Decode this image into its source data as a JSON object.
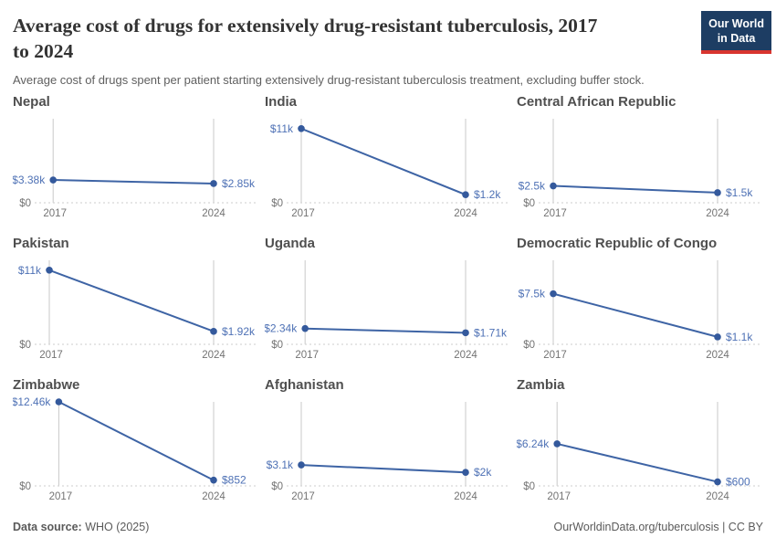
{
  "header": {
    "title_line1": "Average cost of drugs for extensively drug-resistant tuberculosis, 2017",
    "title_line2": "to 2024",
    "subtitle": "Average cost of drugs spent per patient starting extensively drug-resistant tuberculosis treatment, excluding buffer stock.",
    "logo_line1": "Our World",
    "logo_line2": "in Data",
    "logo_colors": {
      "background": "#1d3d63",
      "bar": "#d8352f",
      "text": "#ffffff"
    }
  },
  "chart_data": {
    "type": "line",
    "title": "Average cost of drugs for extensively drug-resistant tuberculosis, 2017 to 2024",
    "subtitle": "Average cost of drugs spent per patient starting extensively drug-resistant tuberculosis treatment, excluding buffer stock.",
    "x": [
      2017,
      2024
    ],
    "x_tick_labels": [
      "2017",
      "2024"
    ],
    "ylim": [
      0,
      12460
    ],
    "y_zero_label": "$0",
    "grid": "vertical-year-gridlines, dotted zero baseline, no legend",
    "facets": [
      {
        "country": "Nepal",
        "values": [
          3380,
          2850
        ],
        "labels": [
          "$3.38k",
          "$2.85k"
        ]
      },
      {
        "country": "India",
        "values": [
          11000,
          1200
        ],
        "labels": [
          "$11k",
          "$1.2k"
        ]
      },
      {
        "country": "Central African Republic",
        "values": [
          2500,
          1500
        ],
        "labels": [
          "$2.5k",
          "$1.5k"
        ]
      },
      {
        "country": "Pakistan",
        "values": [
          11000,
          1920
        ],
        "labels": [
          "$11k",
          "$1.92k"
        ]
      },
      {
        "country": "Uganda",
        "values": [
          2340,
          1710
        ],
        "labels": [
          "$2.34k",
          "$1.71k"
        ]
      },
      {
        "country": "Democratic Republic of Congo",
        "values": [
          7500,
          1100
        ],
        "labels": [
          "$7.5k",
          "$1.1k"
        ]
      },
      {
        "country": "Zimbabwe",
        "values": [
          12460,
          852
        ],
        "labels": [
          "$12.46k",
          "$852"
        ]
      },
      {
        "country": "Afghanistan",
        "values": [
          3100,
          2000
        ],
        "labels": [
          "$3.1k",
          "$2k"
        ]
      },
      {
        "country": "Zambia",
        "values": [
          6240,
          600
        ],
        "labels": [
          "$6.24k",
          "$600"
        ]
      }
    ],
    "colors": {
      "line": "#3e64a5",
      "point": "#34599c",
      "value_label": "#4e71b5",
      "axis_text": "#737373",
      "gridline": "#c9c9c9",
      "baseline_dots": "#d6d6d6"
    }
  },
  "footer": {
    "source_label": "Data source:",
    "source_value": " WHO (2025)",
    "right_text": "OurWorldinData.org/tuberculosis | CC BY"
  }
}
